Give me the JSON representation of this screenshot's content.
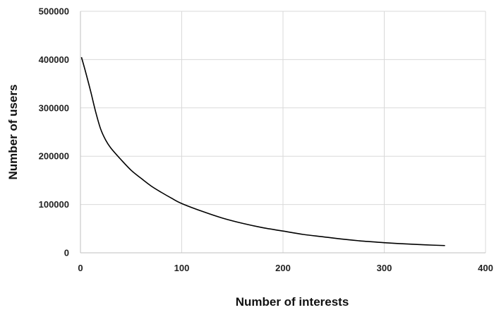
{
  "chart_data": {
    "type": "line",
    "title": "",
    "xlabel": "Number of interests",
    "ylabel": "Number of users",
    "xlim": [
      0,
      400
    ],
    "ylim": [
      0,
      500000
    ],
    "x_ticks": [
      "0",
      "100",
      "200",
      "300",
      "400"
    ],
    "y_ticks": [
      "0",
      "100000",
      "200000",
      "300000",
      "400000",
      "500000"
    ],
    "grid": "vertical and horizontal",
    "series": [
      {
        "color": "#000000",
        "x": [
          1,
          5,
          10,
          15,
          20,
          25,
          30,
          40,
          50,
          60,
          70,
          80,
          90,
          100,
          120,
          140,
          160,
          180,
          200,
          220,
          240,
          260,
          280,
          300,
          320,
          340,
          360
        ],
        "y": [
          405000,
          375000,
          335000,
          292000,
          256000,
          233000,
          217000,
          193000,
          171000,
          154000,
          138000,
          125000,
          113000,
          102000,
          86000,
          72000,
          61000,
          52000,
          45000,
          38000,
          33000,
          28000,
          24000,
          21000,
          18500,
          16500,
          15000
        ]
      }
    ]
  }
}
